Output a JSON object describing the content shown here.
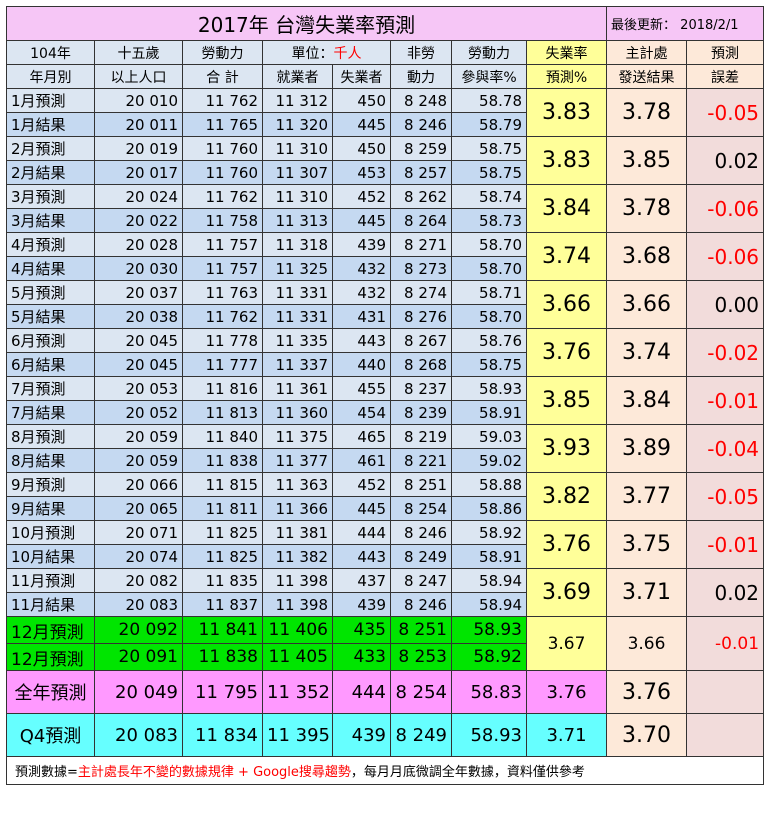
{
  "title": "2017年 台灣失業率預測",
  "last_update_label": "最後更新：",
  "last_update_date": "2018/2/1",
  "header": {
    "period_top": "104年",
    "period_bottom": "年月別",
    "pop_top": "十五歲",
    "pop_bottom": "以上人口",
    "labor_top": "勞動力",
    "labor_bottom": "合 計",
    "unit_label": "單位：",
    "unit_value": "千人",
    "employed": "就業者",
    "unemployed": "失業者",
    "nonlabor_top": "非勞",
    "nonlabor_bottom": "動力",
    "part_top": "勞動力",
    "part_bottom": "參與率%",
    "rate_top": "失業率",
    "rate_bottom": "預測%",
    "dgbas_top": "主計處",
    "dgbas_bottom": "發送結果",
    "err_top": "預測",
    "err_bottom": "誤差"
  },
  "months": [
    {
      "pred": {
        "label": "1月預測",
        "pop": "20 010",
        "labor": "11 762",
        "emp": "11 312",
        "unemp": "450",
        "nonlabor": "8 248",
        "part": "58.78"
      },
      "res": {
        "label": "1月結果",
        "pop": "20 011",
        "labor": "11 765",
        "emp": "11 320",
        "unemp": "445",
        "nonlabor": "8 246",
        "part": "58.79"
      },
      "rate": "3.83",
      "dgbas": "3.78",
      "err": "-0.05"
    },
    {
      "pred": {
        "label": "2月預測",
        "pop": "20 019",
        "labor": "11 760",
        "emp": "11 310",
        "unemp": "450",
        "nonlabor": "8 259",
        "part": "58.75"
      },
      "res": {
        "label": "2月結果",
        "pop": "20 017",
        "labor": "11 760",
        "emp": "11 307",
        "unemp": "453",
        "nonlabor": "8 257",
        "part": "58.75"
      },
      "rate": "3.83",
      "dgbas": "3.85",
      "err": "0.02"
    },
    {
      "pred": {
        "label": "3月預測",
        "pop": "20 024",
        "labor": "11 762",
        "emp": "11 310",
        "unemp": "452",
        "nonlabor": "8 262",
        "part": "58.74"
      },
      "res": {
        "label": "3月結果",
        "pop": "20 022",
        "labor": "11 758",
        "emp": "11 313",
        "unemp": "445",
        "nonlabor": "8 264",
        "part": "58.73"
      },
      "rate": "3.84",
      "dgbas": "3.78",
      "err": "-0.06"
    },
    {
      "pred": {
        "label": "4月預測",
        "pop": "20 028",
        "labor": "11 757",
        "emp": "11 318",
        "unemp": "439",
        "nonlabor": "8 271",
        "part": "58.70"
      },
      "res": {
        "label": "4月結果",
        "pop": "20 030",
        "labor": "11 757",
        "emp": "11 325",
        "unemp": "432",
        "nonlabor": "8 273",
        "part": "58.70"
      },
      "rate": "3.74",
      "dgbas": "3.68",
      "err": "-0.06"
    },
    {
      "pred": {
        "label": "5月預測",
        "pop": "20 037",
        "labor": "11 763",
        "emp": "11 331",
        "unemp": "432",
        "nonlabor": "8 274",
        "part": "58.71"
      },
      "res": {
        "label": "5月結果",
        "pop": "20 038",
        "labor": "11 762",
        "emp": "11 331",
        "unemp": "431",
        "nonlabor": "8 276",
        "part": "58.70"
      },
      "rate": "3.66",
      "dgbas": "3.66",
      "err": "0.00"
    },
    {
      "pred": {
        "label": "6月預測",
        "pop": "20 045",
        "labor": "11 778",
        "emp": "11 335",
        "unemp": "443",
        "nonlabor": "8 267",
        "part": "58.76"
      },
      "res": {
        "label": "6月結果",
        "pop": "20 045",
        "labor": "11 777",
        "emp": "11 337",
        "unemp": "440",
        "nonlabor": "8 268",
        "part": "58.75"
      },
      "rate": "3.76",
      "dgbas": "3.74",
      "err": "-0.02"
    },
    {
      "pred": {
        "label": "7月預測",
        "pop": "20 053",
        "labor": "11 816",
        "emp": "11 361",
        "unemp": "455",
        "nonlabor": "8 237",
        "part": "58.93"
      },
      "res": {
        "label": "7月結果",
        "pop": "20 052",
        "labor": "11 813",
        "emp": "11 360",
        "unemp": "454",
        "nonlabor": "8 239",
        "part": "58.91"
      },
      "rate": "3.85",
      "dgbas": "3.84",
      "err": "-0.01"
    },
    {
      "pred": {
        "label": "8月預測",
        "pop": "20 059",
        "labor": "11 840",
        "emp": "11 375",
        "unemp": "465",
        "nonlabor": "8 219",
        "part": "59.03"
      },
      "res": {
        "label": "8月結果",
        "pop": "20 059",
        "labor": "11 838",
        "emp": "11 377",
        "unemp": "461",
        "nonlabor": "8 221",
        "part": "59.02"
      },
      "rate": "3.93",
      "dgbas": "3.89",
      "err": "-0.04"
    },
    {
      "pred": {
        "label": "9月預測",
        "pop": "20 066",
        "labor": "11 815",
        "emp": "11 363",
        "unemp": "452",
        "nonlabor": "8 251",
        "part": "58.88"
      },
      "res": {
        "label": "9月結果",
        "pop": "20 065",
        "labor": "11 811",
        "emp": "11 366",
        "unemp": "445",
        "nonlabor": "8 254",
        "part": "58.86"
      },
      "rate": "3.82",
      "dgbas": "3.77",
      "err": "-0.05"
    },
    {
      "pred": {
        "label": "10月預測",
        "pop": "20 071",
        "labor": "11 825",
        "emp": "11 381",
        "unemp": "444",
        "nonlabor": "8 246",
        "part": "58.92"
      },
      "res": {
        "label": "10月結果",
        "pop": "20 074",
        "labor": "11 825",
        "emp": "11 382",
        "unemp": "443",
        "nonlabor": "8 249",
        "part": "58.91"
      },
      "rate": "3.76",
      "dgbas": "3.75",
      "err": "-0.01"
    },
    {
      "pred": {
        "label": "11月預測",
        "pop": "20 082",
        "labor": "11 835",
        "emp": "11 398",
        "unemp": "437",
        "nonlabor": "8 247",
        "part": "58.94"
      },
      "res": {
        "label": "11月結果",
        "pop": "20 083",
        "labor": "11 837",
        "emp": "11 398",
        "unemp": "439",
        "nonlabor": "8 246",
        "part": "58.94"
      },
      "rate": "3.69",
      "dgbas": "3.71",
      "err": "0.02"
    }
  ],
  "december": {
    "row1": {
      "label": "12月預測",
      "pop": "20 092",
      "labor": "11 841",
      "emp": "11 406",
      "unemp": "435",
      "nonlabor": "8 251",
      "part": "58.93"
    },
    "row2": {
      "label": "12月預測",
      "pop": "20 091",
      "labor": "11 838",
      "emp": "11 405",
      "unemp": "433",
      "nonlabor": "8 253",
      "part": "58.92"
    },
    "rate": "3.67",
    "dgbas": "3.66",
    "err": "-0.01"
  },
  "year": {
    "label": "全年預測",
    "pop": "20 049",
    "labor": "11 795",
    "emp": "11 352",
    "unemp": "444",
    "nonlabor": "8 254",
    "part": "58.83",
    "rate": "3.76",
    "dgbas": "3.76"
  },
  "q4": {
    "label": "Q4預測",
    "pop": "20 083",
    "labor": "11 834",
    "emp": "11 395",
    "unemp": "439",
    "nonlabor": "8 249",
    "part": "58.93",
    "rate": "3.71",
    "dgbas": "3.70"
  },
  "footer": {
    "prefix": "預測數據=",
    "highlight": "主計處長年不變的數據規律 + Google搜尋趨勢",
    "suffix": "，每月月底微調全年數據，資料僅供參考"
  },
  "colors": {
    "title_bg": "#f6c6f6",
    "header_bg": "#dce6f2",
    "pred_bg": "#dce6f2",
    "result_bg": "#c5d9f1",
    "rate_bg": "#ffff99",
    "dgbas_bg": "#fde9d9",
    "error_bg": "#f2dcdb",
    "december_bg": "#00e500",
    "year_bg": "#ff99ff",
    "q4_bg": "#66ffff",
    "negative_text": "#ff0000"
  }
}
